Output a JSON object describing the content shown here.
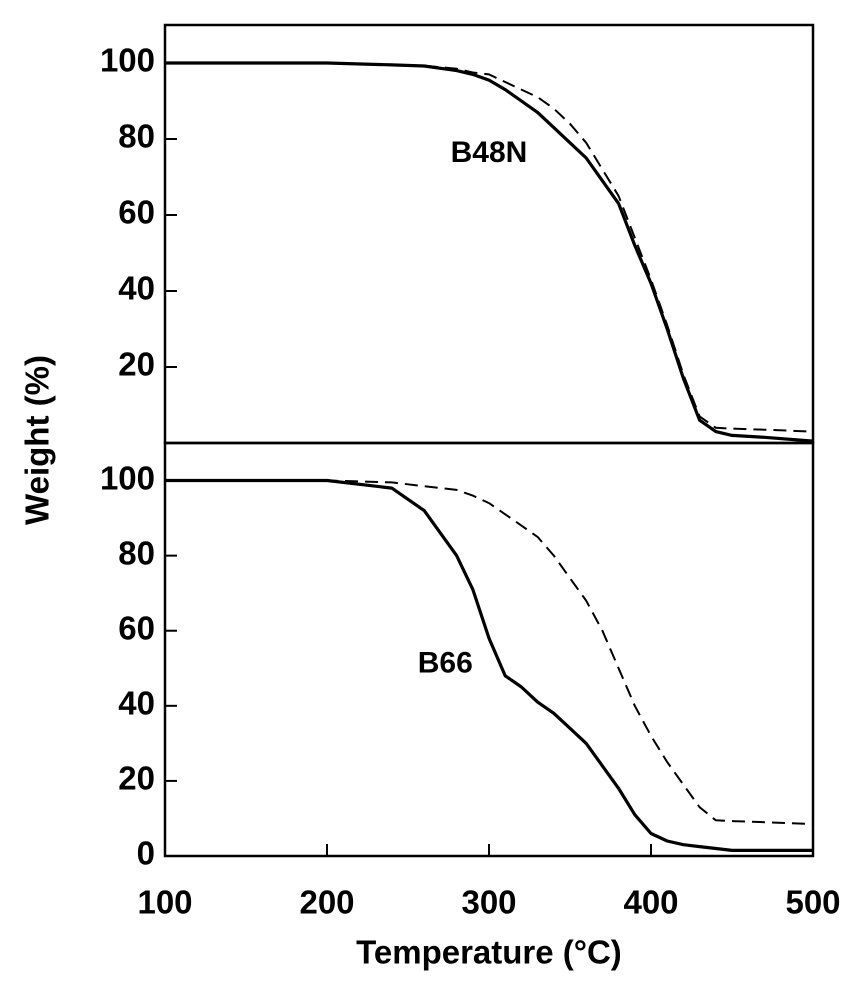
{
  "chart_data": [
    {
      "type": "line",
      "ylabel": "Weight (%)",
      "x": [
        100,
        200,
        240,
        260,
        280,
        290,
        300,
        310,
        320,
        330,
        340,
        350,
        360,
        370,
        380,
        390,
        400,
        410,
        420,
        430,
        440,
        450,
        470,
        500
      ],
      "series": [
        {
          "color": "#000000",
          "linestyle": "solid",
          "values": [
            100,
            100,
            99.5,
            99.2,
            98,
            97,
            95.5,
            93,
            90,
            87,
            83,
            79,
            75,
            69,
            63,
            52,
            42,
            30,
            17,
            6,
            3,
            2,
            1.5,
            0.5
          ]
        },
        {
          "color": "#000000",
          "linestyle": "dashed",
          "values": [
            100,
            100,
            99.5,
            99.3,
            98.5,
            97.5,
            97,
            95,
            93,
            91,
            88,
            84,
            79,
            72,
            65,
            54,
            43,
            31,
            18,
            7,
            4,
            3.8,
            3.5,
            3
          ]
        }
      ],
      "xlim": [
        100,
        500
      ],
      "ylim": [
        0,
        110
      ],
      "yticks": [
        20,
        40,
        60,
        80,
        100
      ],
      "annotations": [
        {
          "text": "B48N",
          "x": 300,
          "y": 76
        }
      ]
    },
    {
      "type": "line",
      "xlabel": "Temperature (°C)",
      "x": [
        100,
        200,
        240,
        260,
        280,
        290,
        300,
        310,
        320,
        330,
        340,
        350,
        360,
        370,
        380,
        390,
        400,
        410,
        420,
        430,
        440,
        450,
        470,
        500
      ],
      "series": [
        {
          "color": "#000000",
          "linestyle": "solid",
          "values": [
            100,
            100,
            98,
            92,
            80,
            71,
            58,
            48,
            45,
            41,
            38,
            34,
            30,
            24,
            18,
            11,
            6,
            4,
            3,
            2.5,
            2,
            1.5,
            1.5,
            1.5
          ]
        },
        {
          "color": "#000000",
          "linestyle": "dashed",
          "values": [
            100,
            100,
            99.5,
            98.5,
            97.5,
            96,
            94,
            91,
            88,
            85,
            80,
            74,
            68,
            60,
            50,
            40,
            32,
            25,
            19,
            13,
            9.5,
            9.3,
            9,
            8.5
          ]
        }
      ],
      "xlim": [
        100,
        500
      ],
      "ylim": [
        0,
        110
      ],
      "xticks": [
        100,
        200,
        300,
        400,
        500
      ],
      "yticks": [
        0,
        20,
        40,
        60,
        80,
        100
      ],
      "annotations": [
        {
          "text": "B66",
          "x": 273,
          "y": 51
        }
      ]
    }
  ]
}
